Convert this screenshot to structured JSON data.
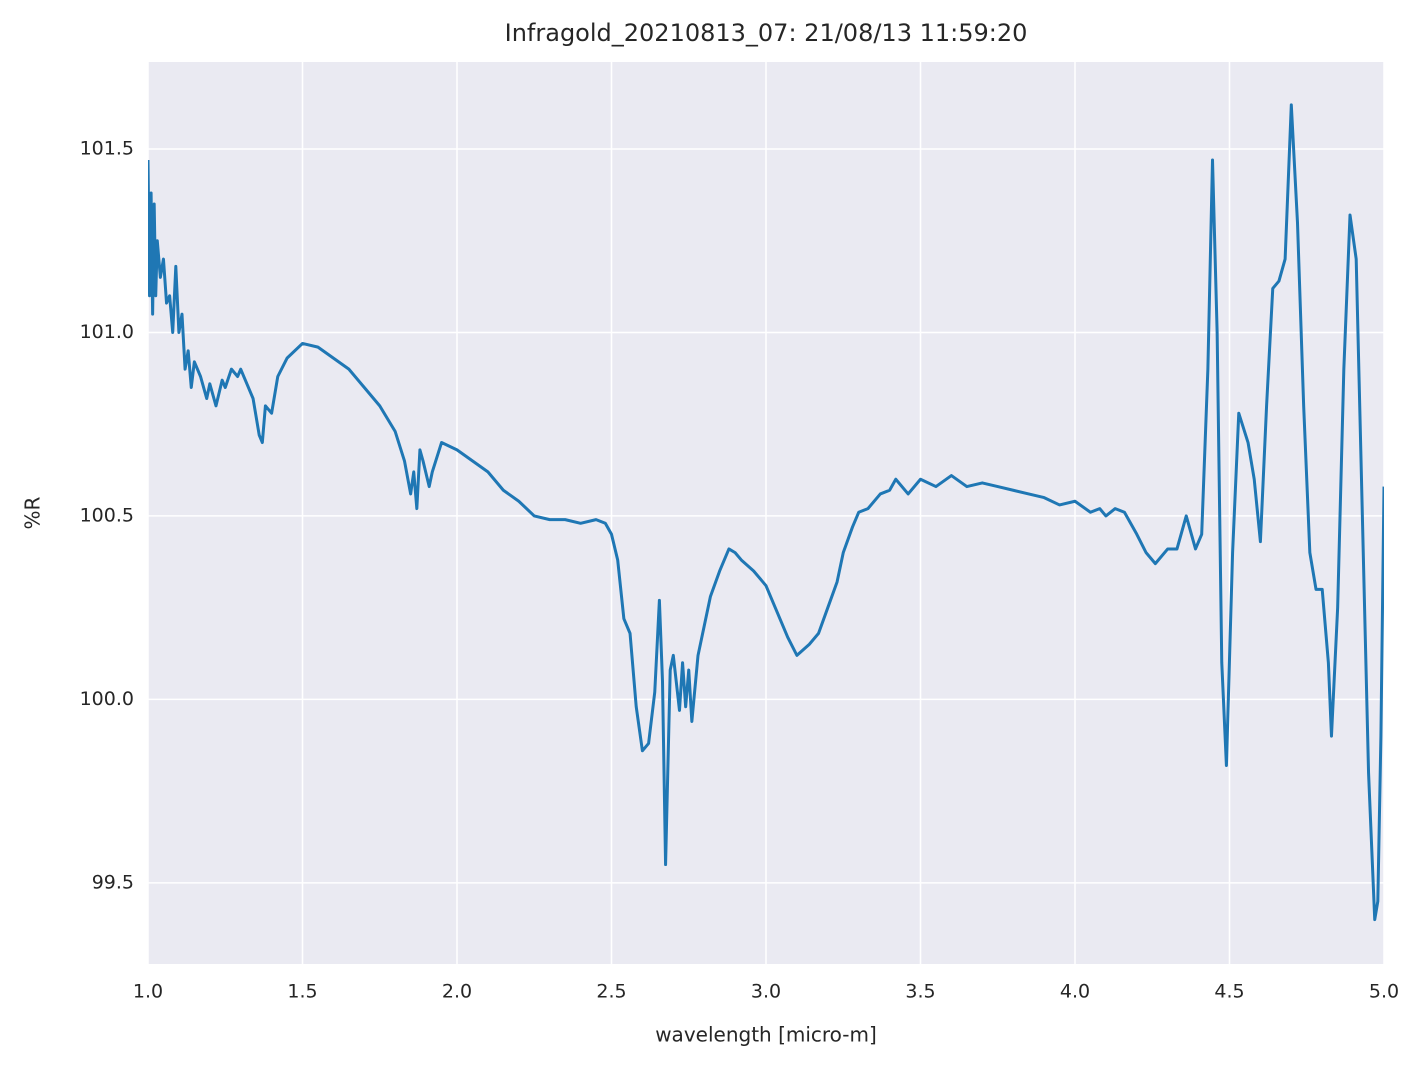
{
  "chart_data": {
    "type": "line",
    "title": "Infragold_20210813_07:  21/08/13 11:59:20",
    "xlabel": "wavelength [micro-m]",
    "ylabel": "%R",
    "x": [
      1.0,
      1.005,
      1.01,
      1.015,
      1.02,
      1.025,
      1.03,
      1.04,
      1.05,
      1.06,
      1.07,
      1.08,
      1.09,
      1.1,
      1.11,
      1.12,
      1.13,
      1.14,
      1.15,
      1.17,
      1.19,
      1.2,
      1.22,
      1.24,
      1.25,
      1.27,
      1.29,
      1.3,
      1.32,
      1.34,
      1.36,
      1.37,
      1.38,
      1.4,
      1.42,
      1.45,
      1.5,
      1.55,
      1.6,
      1.65,
      1.7,
      1.75,
      1.8,
      1.83,
      1.85,
      1.86,
      1.87,
      1.88,
      1.89,
      1.91,
      1.92,
      1.95,
      2.0,
      2.05,
      2.1,
      2.15,
      2.2,
      2.25,
      2.3,
      2.35,
      2.4,
      2.45,
      2.48,
      2.5,
      2.52,
      2.54,
      2.56,
      2.58,
      2.6,
      2.62,
      2.64,
      2.655,
      2.665,
      2.675,
      2.69,
      2.7,
      2.72,
      2.73,
      2.74,
      2.75,
      2.76,
      2.78,
      2.8,
      2.82,
      2.85,
      2.88,
      2.9,
      2.92,
      2.96,
      3.0,
      3.03,
      3.07,
      3.1,
      3.14,
      3.17,
      3.2,
      3.23,
      3.25,
      3.28,
      3.3,
      3.33,
      3.37,
      3.4,
      3.42,
      3.46,
      3.5,
      3.55,
      3.6,
      3.65,
      3.7,
      3.75,
      3.8,
      3.85,
      3.9,
      3.95,
      4.0,
      4.05,
      4.08,
      4.1,
      4.13,
      4.16,
      4.2,
      4.23,
      4.26,
      4.3,
      4.33,
      4.36,
      4.39,
      4.41,
      4.43,
      4.445,
      4.46,
      4.475,
      4.49,
      4.51,
      4.53,
      4.56,
      4.58,
      4.6,
      4.62,
      4.64,
      4.66,
      4.68,
      4.7,
      4.72,
      4.74,
      4.76,
      4.78,
      4.8,
      4.82,
      4.83,
      4.85,
      4.87,
      4.89,
      4.91,
      4.93,
      4.95,
      4.97,
      4.98,
      4.99,
      5.0
    ],
    "series": [
      {
        "name": "%R",
        "color": "#1f77b4",
        "values": [
          101.47,
          101.1,
          101.38,
          101.05,
          101.35,
          101.1,
          101.25,
          101.15,
          101.2,
          101.08,
          101.1,
          101.0,
          101.18,
          101.0,
          101.05,
          100.9,
          100.95,
          100.85,
          100.92,
          100.88,
          100.82,
          100.86,
          100.8,
          100.87,
          100.85,
          100.9,
          100.88,
          100.9,
          100.86,
          100.82,
          100.72,
          100.7,
          100.8,
          100.78,
          100.88,
          100.93,
          100.97,
          100.96,
          100.93,
          100.9,
          100.85,
          100.8,
          100.73,
          100.65,
          100.56,
          100.62,
          100.52,
          100.68,
          100.65,
          100.58,
          100.62,
          100.7,
          100.68,
          100.65,
          100.62,
          100.57,
          100.54,
          100.5,
          100.49,
          100.49,
          100.48,
          100.49,
          100.48,
          100.45,
          100.38,
          100.22,
          100.18,
          99.98,
          99.86,
          99.88,
          100.02,
          100.27,
          100.05,
          99.55,
          100.08,
          100.12,
          99.97,
          100.1,
          99.98,
          100.08,
          99.94,
          100.12,
          100.2,
          100.28,
          100.35,
          100.41,
          100.4,
          100.38,
          100.35,
          100.31,
          100.25,
          100.17,
          100.12,
          100.15,
          100.18,
          100.25,
          100.32,
          100.4,
          100.47,
          100.51,
          100.52,
          100.56,
          100.57,
          100.6,
          100.56,
          100.6,
          100.58,
          100.61,
          100.58,
          100.59,
          100.58,
          100.57,
          100.56,
          100.55,
          100.53,
          100.54,
          100.51,
          100.52,
          100.5,
          100.52,
          100.51,
          100.45,
          100.4,
          100.37,
          100.41,
          100.41,
          100.5,
          100.41,
          100.45,
          100.9,
          101.47,
          101.0,
          100.1,
          99.82,
          100.4,
          100.78,
          100.7,
          100.6,
          100.43,
          100.8,
          101.12,
          101.14,
          101.2,
          101.62,
          101.3,
          100.8,
          100.4,
          100.3,
          100.3,
          100.1,
          99.9,
          100.25,
          100.9,
          101.32,
          101.2,
          100.5,
          99.8,
          99.4,
          99.45,
          99.9,
          100.58
        ]
      }
    ],
    "xlim": [
      1.0,
      5.0
    ],
    "ylim": [
      99.279,
      101.737
    ],
    "xticks": [
      {
        "value": 1.0,
        "label": "1.0"
      },
      1.5,
      {
        "value": 2.0,
        "label": "2.0"
      },
      2.5,
      {
        "value": 3.0,
        "label": "3.0"
      },
      3.5,
      {
        "value": 4.0,
        "label": "4.0"
      },
      4.5,
      {
        "value": 5.0,
        "label": "5.0"
      }
    ],
    "yticks": [
      99.5,
      {
        "value": 100.0,
        "label": "100.0"
      },
      100.5,
      {
        "value": 101.0,
        "label": "101.0"
      },
      101.5
    ],
    "grid": true
  }
}
